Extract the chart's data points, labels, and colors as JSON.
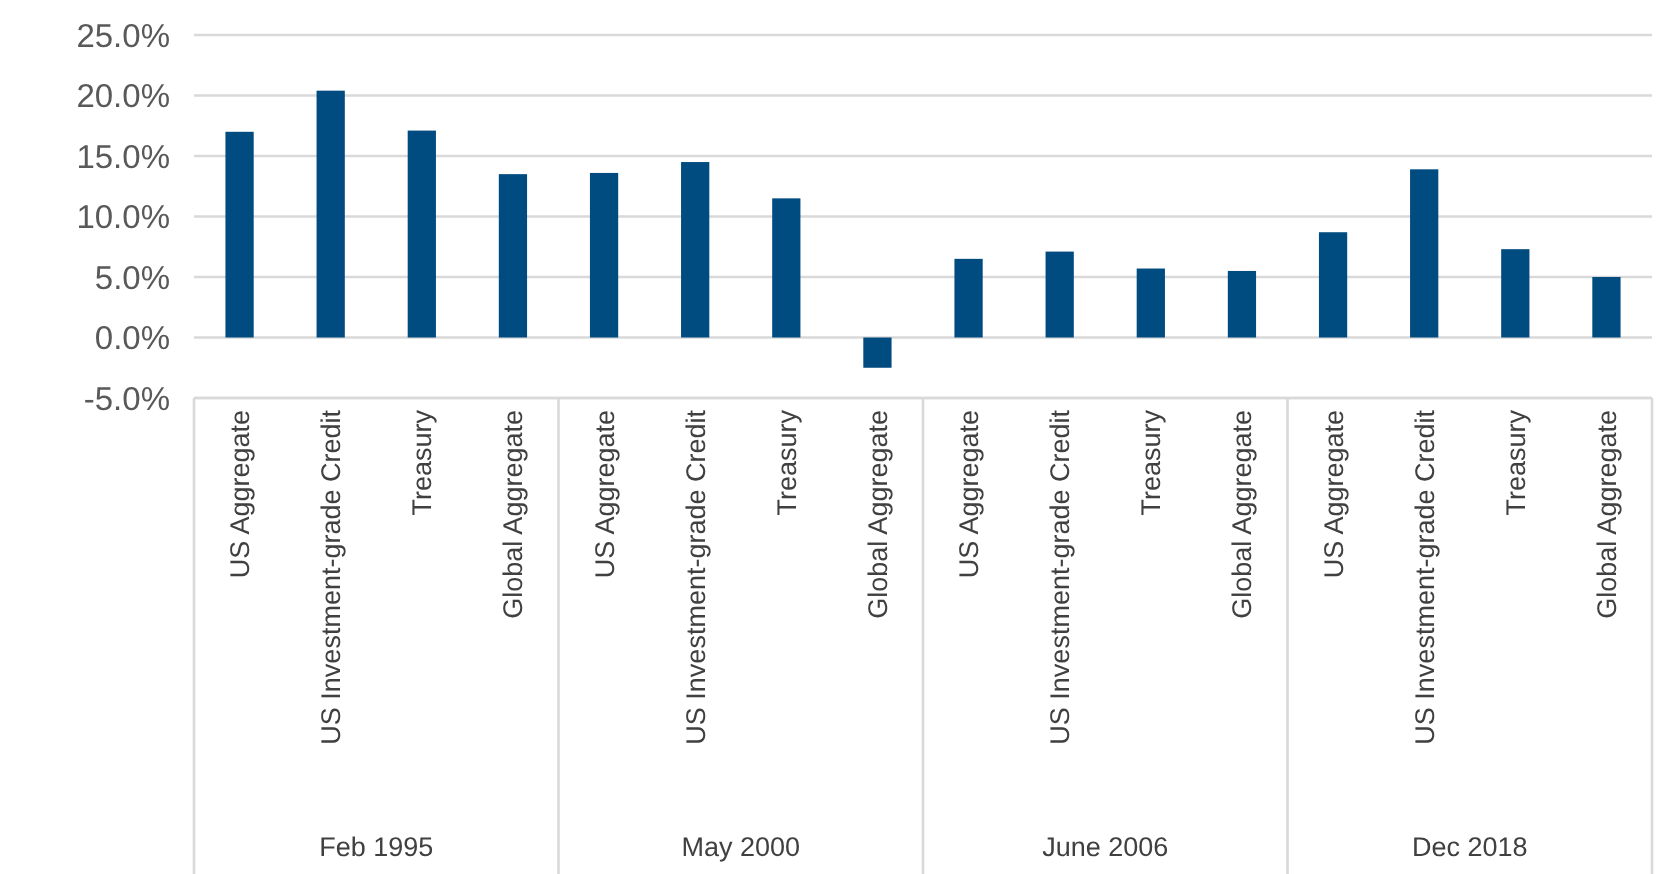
{
  "chart_data": {
    "type": "bar",
    "categories": [
      "US Aggregate",
      "US Investment-grade Credit",
      "Treasury",
      "Global Aggregate",
      "US Aggregate",
      "US Investment-grade Credit",
      "Treasury",
      "Global Aggregate",
      "US Aggregate",
      "US Investment-grade Credit",
      "Treasury",
      "Global Aggregate",
      "US Aggregate",
      "US Investment-grade Credit",
      "Treasury",
      "Global Aggregate"
    ],
    "values": [
      17.0,
      20.4,
      17.1,
      13.5,
      13.6,
      14.5,
      11.5,
      -2.5,
      6.5,
      7.1,
      5.7,
      5.5,
      8.7,
      13.9,
      7.3,
      5.0
    ],
    "color": "#004b80",
    "ylim": [
      -5,
      25
    ],
    "yticks": [
      {
        "value": -5,
        "label": "-5.0%"
      },
      {
        "value": 0,
        "label": "0.0%"
      },
      {
        "value": 5,
        "label": "5.0%"
      },
      {
        "value": 10,
        "label": "10.0%"
      },
      {
        "value": 15,
        "label": "15.0%"
      },
      {
        "value": 20,
        "label": "20.0%"
      },
      {
        "value": 25,
        "label": "25.0%"
      }
    ],
    "grid": "y",
    "annotations": [
      "Feb 1995",
      "May 2000",
      "June 2006",
      "Dec 2018"
    ]
  }
}
